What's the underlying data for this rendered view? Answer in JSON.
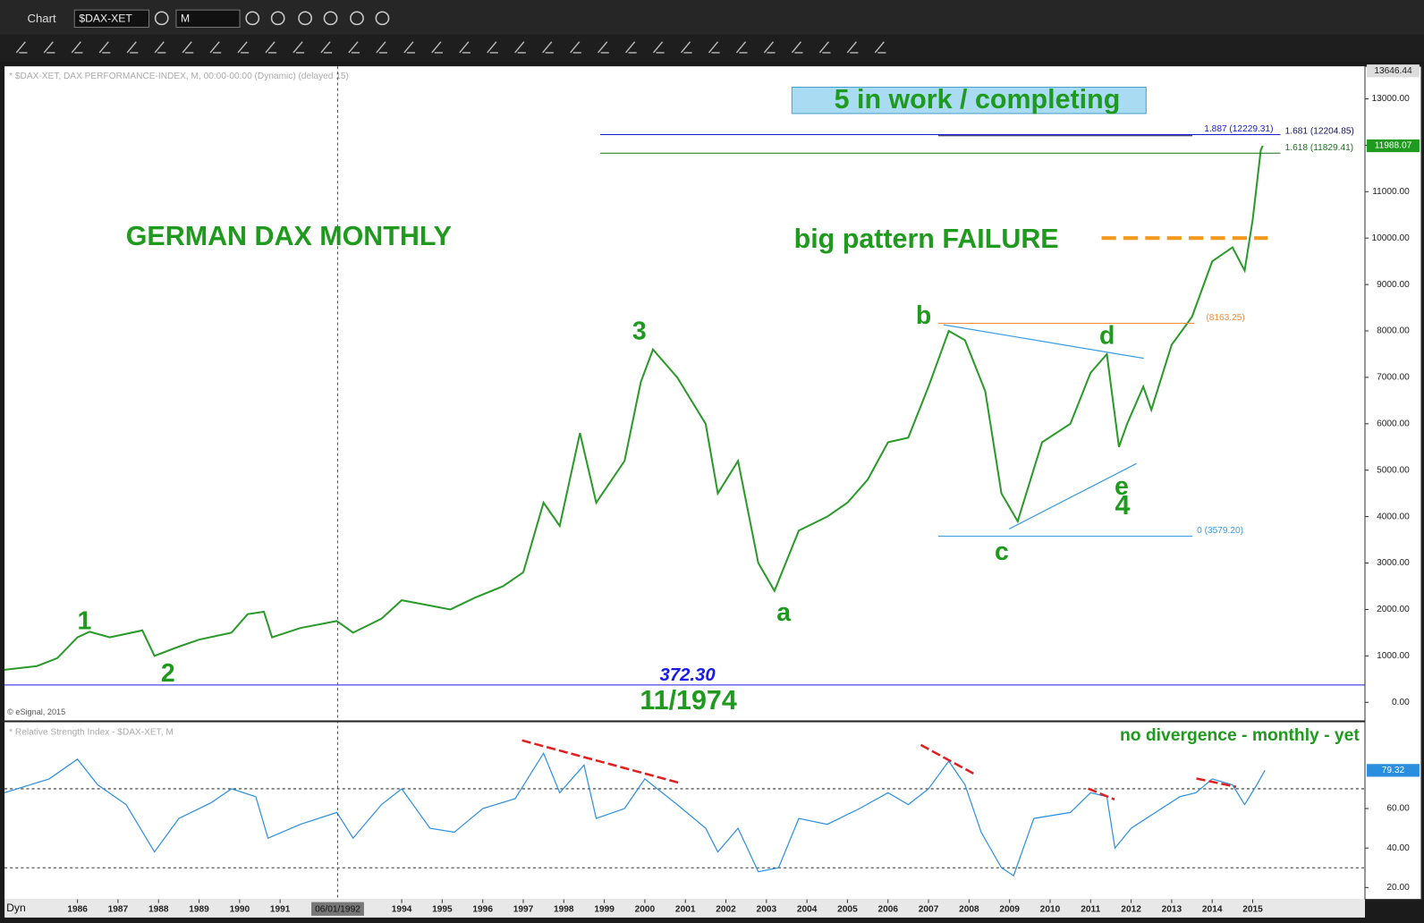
{
  "toolbar": {
    "app": "Chart",
    "symbol": "$DAX-XET",
    "interval": "M"
  },
  "chart_data": [
    {
      "type": "line",
      "subtitle": "* $DAX-XET, DAX PERFORMANCE-INDEX, M, 00:00-00:00 (Dynamic) (delayed 15)",
      "credit": "© eSignal, 2015",
      "color": "#2a9a2a",
      "x": [
        1984.2,
        1985.0,
        1985.5,
        1986.0,
        1986.3,
        1986.8,
        1987.6,
        1987.9,
        1988.5,
        1989.0,
        1989.8,
        1990.2,
        1990.6,
        1990.8,
        1991.5,
        1992.4,
        1992.8,
        1993.5,
        1994.0,
        1994.6,
        1995.2,
        1995.8,
        1996.5,
        1997.0,
        1997.5,
        1997.9,
        1998.4,
        1998.8,
        1999.5,
        1999.9,
        2000.2,
        2000.8,
        2001.5,
        2001.8,
        2002.3,
        2002.8,
        2003.2,
        2003.8,
        2004.5,
        2005.0,
        2005.5,
        2006.0,
        2006.5,
        2007.0,
        2007.5,
        2007.9,
        2008.4,
        2008.8,
        2009.2,
        2009.8,
        2010.5,
        2011.0,
        2011.4,
        2011.7,
        2011.9,
        2012.3,
        2012.5,
        2013.0,
        2013.5,
        2014.0,
        2014.5,
        2014.8,
        2015.0,
        2015.2,
        2015.25
      ],
      "values": [
        700,
        780,
        950,
        1400,
        1520,
        1400,
        1550,
        1000,
        1200,
        1350,
        1500,
        1900,
        1950,
        1400,
        1600,
        1750,
        1500,
        1800,
        2200,
        2100,
        2000,
        2250,
        2500,
        2800,
        4300,
        3800,
        5800,
        4300,
        5200,
        6900,
        7600,
        7000,
        6000,
        4500,
        5200,
        3000,
        2400,
        3700,
        4000,
        4300,
        4800,
        5600,
        5700,
        6800,
        8000,
        7800,
        6700,
        4500,
        3900,
        5600,
        6000,
        7100,
        7500,
        5500,
        6000,
        6800,
        6300,
        7700,
        8300,
        9500,
        9800,
        9300,
        10400,
        11900,
        11988.07
      ],
      "xlim": [
        1984.2,
        2017.77
      ],
      "xticks": [
        1986,
        1987,
        1988,
        1989,
        1990,
        1991,
        1994,
        1995,
        1996,
        1997,
        1998,
        1999,
        2000,
        2001,
        2002,
        2003,
        2004,
        2005,
        2006,
        2007,
        2008,
        2009,
        2010,
        2011,
        2012,
        2013,
        2014,
        2015
      ],
      "cursor": {
        "x": 1992.42,
        "label": "06/01/1992"
      },
      "ylim": [
        -390,
        13700
      ],
      "yticks": [
        {
          "value": 0,
          "label": "0.00"
        },
        {
          "value": 1000,
          "label": "1000.00"
        },
        {
          "value": 2000,
          "label": "2000.00"
        },
        {
          "value": 3000,
          "label": "3000.00"
        },
        {
          "value": 4000,
          "label": "4000.00"
        },
        {
          "value": 5000,
          "label": "5000.00"
        },
        {
          "value": 6000,
          "label": "6000.00"
        },
        {
          "value": 7000,
          "label": "7000.00"
        },
        {
          "value": 8000,
          "label": "8000.00"
        },
        {
          "value": 9000,
          "label": "9000.00"
        },
        {
          "value": 10000,
          "label": "10000.00"
        },
        {
          "value": 11000,
          "label": "11000.00"
        },
        {
          "value": 12000,
          "label": "12000.00"
        },
        {
          "value": 13000,
          "label": "13000.00"
        }
      ],
      "top_marker": 13646.44,
      "last_value": 11988.07,
      "levels": [
        {
          "value": 12229.31,
          "label": "1.887 (12229.31)",
          "color": "#1a1acc"
        },
        {
          "value": 12204.85,
          "label": "1.681 (12204.85)",
          "color": "#10105a"
        },
        {
          "value": 11829.41,
          "label": "1.618 (11829.41)",
          "color": "#1e6e1e"
        },
        {
          "value": 8163.25,
          "label": "(8163.25)",
          "color": "#f08c3c"
        },
        {
          "value": 3579.2,
          "label": "0 (3579.20)",
          "color": "#3b9be0"
        },
        {
          "value": 372.3,
          "label": "372.30",
          "color": "#1a1ae6"
        }
      ],
      "breakout_level": {
        "value": 10000,
        "color": "#f39a1e"
      },
      "trendlines": [
        {
          "x": [
            2007.37,
            2012.31
          ],
          "y": [
            8133,
            7410
          ],
          "color": "#3b9be0"
        },
        {
          "x": [
            2008.99,
            2012.13
          ],
          "y": [
            3734,
            5142
          ],
          "color": "#3b9be0"
        }
      ],
      "annotations": [
        "GERMAN DAX MONTHLY",
        "big pattern FAILURE",
        "5 in work  / completing",
        "1",
        "2",
        "3",
        "a",
        "b",
        "c",
        "d",
        "e",
        "4",
        "11/1974"
      ]
    },
    {
      "type": "line",
      "title": "* Relative Strength Index - $DAX-XET, M",
      "color": "#2b8fe0",
      "x": [
        1984.2,
        1985.3,
        1986.0,
        1986.5,
        1987.2,
        1987.9,
        1988.5,
        1989.3,
        1989.8,
        1990.4,
        1990.7,
        1991.5,
        1992.4,
        1992.8,
        1993.5,
        1994.0,
        1994.7,
        1995.3,
        1996.0,
        1996.8,
        1997.5,
        1997.9,
        1998.5,
        1998.8,
        1999.5,
        2000.0,
        2000.8,
        2001.5,
        2001.8,
        2002.3,
        2002.8,
        2003.3,
        2003.8,
        2004.5,
        2005.3,
        2006.0,
        2006.5,
        2007.0,
        2007.5,
        2007.9,
        2008.3,
        2008.8,
        2009.1,
        2009.6,
        2010.5,
        2011.0,
        2011.4,
        2011.6,
        2012.0,
        2012.6,
        2013.2,
        2013.6,
        2014.0,
        2014.5,
        2014.8,
        2015.1,
        2015.3
      ],
      "values": [
        68,
        75,
        85,
        72,
        62,
        38,
        55,
        63,
        70,
        66,
        45,
        52,
        58,
        45,
        62,
        70,
        50,
        48,
        60,
        65,
        88,
        68,
        82,
        55,
        60,
        75,
        62,
        50,
        38,
        50,
        28,
        30,
        55,
        52,
        60,
        68,
        62,
        70,
        84,
        72,
        48,
        30,
        26,
        55,
        58,
        68,
        66,
        40,
        50,
        58,
        66,
        68,
        75,
        72,
        62,
        72,
        79.32
      ],
      "xlim": [
        1984.2,
        2017.77
      ],
      "ylim": [
        14,
        103.7
      ],
      "yticks": [
        {
          "value": 20,
          "label": "20.00"
        },
        {
          "value": 40,
          "label": "40.00"
        },
        {
          "value": 60,
          "label": "60.00"
        }
      ],
      "reference_lines": [
        70,
        30
      ],
      "last_value": 79.32,
      "trendlines": [
        {
          "x": [
            1996.97,
            2000.87
          ],
          "y": [
            94.5,
            72.9
          ],
          "color": "#e02020"
        },
        {
          "x": [
            2006.81,
            2008.13
          ],
          "y": [
            92.2,
            77.5
          ],
          "color": "#e02020"
        },
        {
          "x": [
            2010.94,
            2011.59
          ],
          "y": [
            70.1,
            64.6
          ],
          "color": "#e02020"
        },
        {
          "x": [
            2013.61,
            2014.59
          ],
          "y": [
            75.2,
            71.0
          ],
          "color": "#e02020"
        }
      ],
      "annotations": [
        "no divergence - monthly - yet"
      ]
    }
  ]
}
